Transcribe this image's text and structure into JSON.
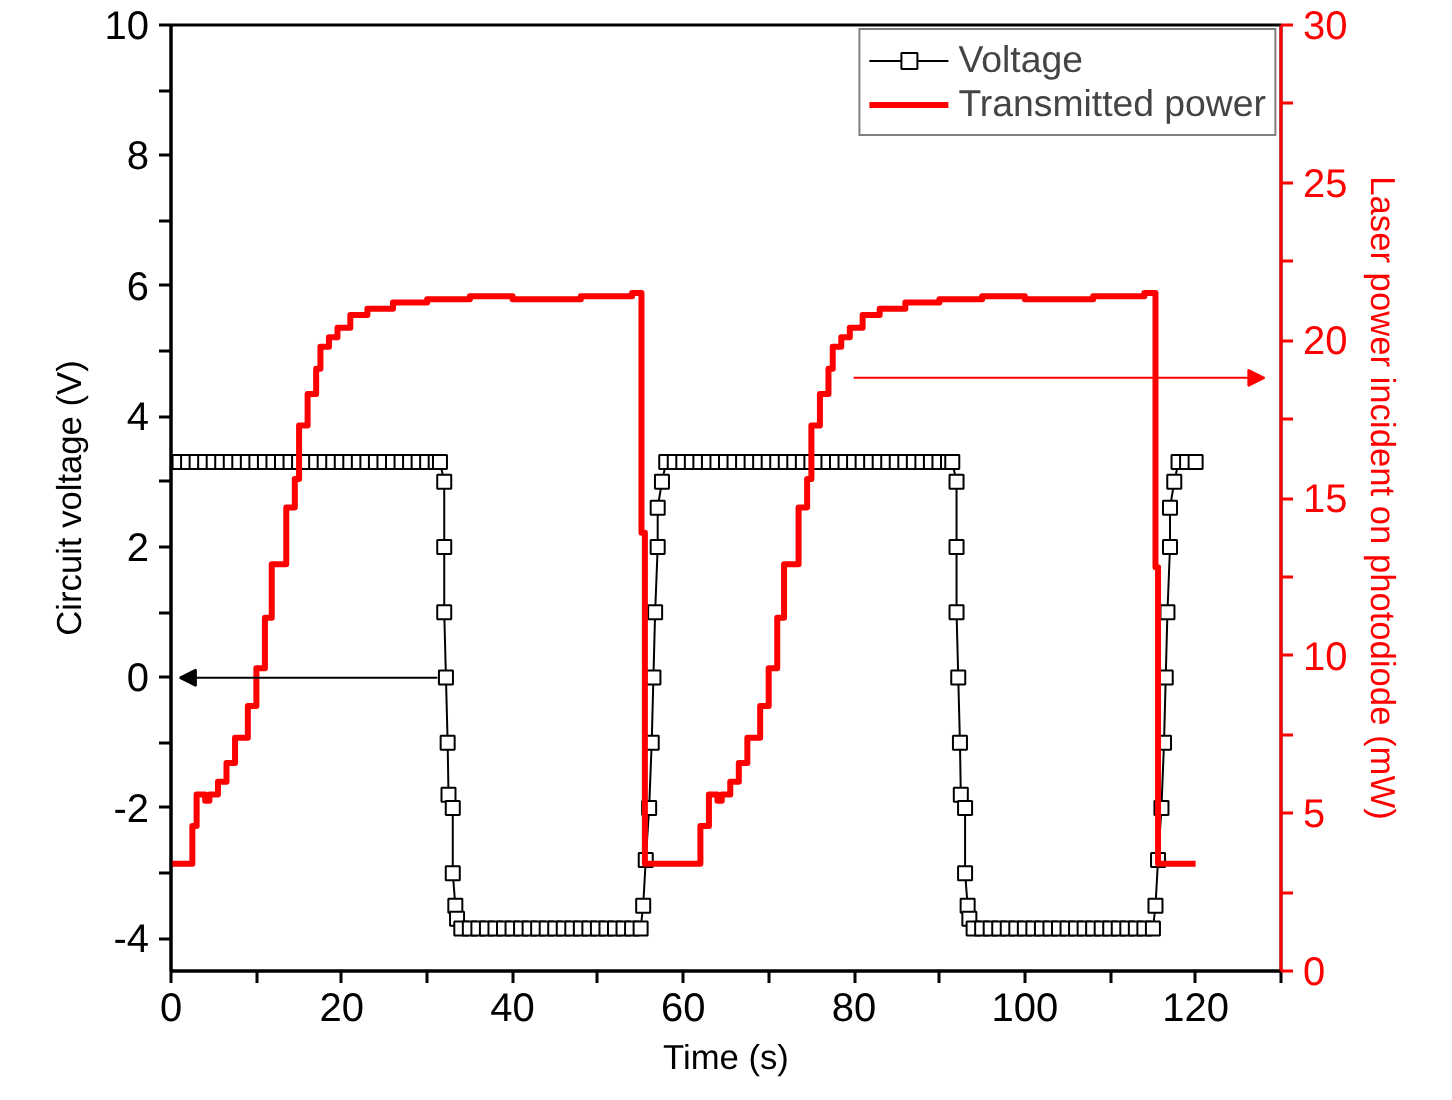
{
  "chart_data": {
    "type": "line",
    "xlabel": "Time (s)",
    "ylabel": "Circuit voltage (V)",
    "y2label": "Laser power incident on photodiode (mW)",
    "xlim": [
      0,
      130
    ],
    "xticks": [
      0,
      {
        "value": 10,
        "label": null
      },
      20,
      {
        "value": 30,
        "label": null
      },
      40,
      {
        "value": 50,
        "label": null
      },
      60,
      {
        "value": 70,
        "label": null
      },
      80,
      {
        "value": 90,
        "label": null
      },
      100,
      {
        "value": 110,
        "label": null
      },
      120,
      {
        "value": 130,
        "label": null
      }
    ],
    "ylim": [
      -4.5,
      10
    ],
    "yticks": [
      -4,
      {
        "value": -3,
        "label": null
      },
      -2,
      {
        "value": -1,
        "label": null
      },
      0,
      {
        "value": 1,
        "label": null
      },
      2,
      {
        "value": 3,
        "label": null
      },
      4,
      {
        "value": 5,
        "label": null
      },
      6,
      {
        "value": 7,
        "label": null
      },
      8,
      {
        "value": 9,
        "label": null
      },
      10
    ],
    "y2lim": [
      0,
      30
    ],
    "y2ticks": [
      0,
      {
        "value": 2.5,
        "label": null
      },
      5,
      {
        "value": 7.5,
        "label": null
      },
      10,
      {
        "value": 12.5,
        "label": null
      },
      15,
      {
        "value": 17.5,
        "label": null
      },
      20,
      {
        "value": 22.5,
        "label": null
      },
      25,
      {
        "value": 27.5,
        "label": null
      },
      30
    ],
    "grid": false,
    "legend": "top right",
    "series": [
      {
        "name": "Voltage",
        "marker": "square",
        "color": "#000000",
        "x": [
          0,
          1,
          2,
          3,
          4,
          5,
          6,
          7,
          8,
          9,
          10,
          11,
          12,
          13,
          14,
          15,
          16,
          17,
          18,
          19,
          20,
          21,
          22,
          23,
          24,
          25,
          26,
          27,
          28,
          29,
          30,
          31,
          31.5,
          32,
          32,
          32,
          32.2,
          32.4,
          32.5,
          33,
          33,
          33.3,
          33.5,
          34,
          35,
          36,
          37,
          38,
          39,
          40,
          41,
          42,
          43,
          44,
          45,
          46,
          47,
          48,
          49,
          50,
          51,
          52,
          53,
          54,
          55,
          55.3,
          55.6,
          56,
          56.3,
          56.5,
          56.7,
          57,
          57,
          57.5,
          58,
          59,
          60,
          61,
          62,
          63,
          64,
          65,
          66,
          67,
          68,
          69,
          70,
          71,
          72,
          73,
          74,
          75,
          76,
          77,
          78,
          79,
          80,
          81,
          82,
          83,
          84,
          85,
          86,
          87,
          88,
          89,
          90,
          91,
          91.5,
          92,
          92,
          92,
          92.2,
          92.4,
          92.5,
          93,
          93,
          93.3,
          93.5,
          94,
          95,
          96,
          97,
          98,
          99,
          100,
          101,
          102,
          103,
          104,
          105,
          106,
          107,
          108,
          109,
          110,
          111,
          112,
          113,
          114,
          115,
          115.3,
          115.6,
          116,
          116.3,
          116.5,
          116.7,
          117,
          117,
          117.5,
          118,
          119,
          120
        ],
        "values": [
          3.3,
          3.3,
          3.3,
          3.3,
          3.3,
          3.3,
          3.3,
          3.3,
          3.3,
          3.3,
          3.3,
          3.3,
          3.3,
          3.3,
          3.3,
          3.3,
          3.3,
          3.3,
          3.3,
          3.3,
          3.3,
          3.3,
          3.3,
          3.3,
          3.3,
          3.3,
          3.3,
          3.3,
          3.3,
          3.3,
          3.3,
          3.3,
          3.3,
          3.0,
          2.0,
          1.0,
          0,
          -1.0,
          -1.8,
          -2.0,
          -3.0,
          -3.5,
          -3.7,
          -3.85,
          -3.85,
          -3.85,
          -3.85,
          -3.85,
          -3.85,
          -3.85,
          -3.85,
          -3.85,
          -3.85,
          -3.85,
          -3.85,
          -3.85,
          -3.85,
          -3.85,
          -3.85,
          -3.85,
          -3.85,
          -3.85,
          -3.85,
          -3.85,
          -3.85,
          -3.5,
          -2.8,
          -2.0,
          -1.0,
          0,
          1.0,
          2.0,
          2.6,
          3.0,
          3.3,
          3.3,
          3.3,
          3.3,
          3.3,
          3.3,
          3.3,
          3.3,
          3.3,
          3.3,
          3.3,
          3.3,
          3.3,
          3.3,
          3.3,
          3.3,
          3.3,
          3.3,
          3.3,
          3.3,
          3.3,
          3.3,
          3.3,
          3.3,
          3.3,
          3.3,
          3.3,
          3.3,
          3.3,
          3.3,
          3.3,
          3.3,
          3.3,
          3.3,
          3.3,
          3.0,
          2.0,
          1.0,
          0,
          -1.0,
          -1.8,
          -2.0,
          -3.0,
          -3.5,
          -3.7,
          -3.85,
          -3.85,
          -3.85,
          -3.85,
          -3.85,
          -3.85,
          -3.85,
          -3.85,
          -3.85,
          -3.85,
          -3.85,
          -3.85,
          -3.85,
          -3.85,
          -3.85,
          -3.85,
          -3.85,
          -3.85,
          -3.85,
          -3.85,
          -3.85,
          -3.85,
          -3.5,
          -2.8,
          -2.0,
          -1.0,
          0,
          1.0,
          2.0,
          2.6,
          3.0,
          3.3,
          3.3,
          3.3
        ]
      },
      {
        "name": "Transmitted power",
        "type": "step",
        "axis": "y2",
        "marker": "none",
        "color": "#ff0000",
        "x": [
          0,
          2.5,
          3,
          4,
          4.5,
          5.5,
          6.5,
          7.5,
          9,
          10,
          11,
          11.8,
          13.5,
          14.5,
          15,
          16,
          17,
          17.5,
          18.5,
          19.5,
          21,
          23,
          26,
          30,
          35,
          40,
          48,
          54,
          55.1,
          55.5,
          62,
          63,
          64,
          64.5,
          65.5,
          66.5,
          67.5,
          69,
          70,
          71,
          71.8,
          73.5,
          74.5,
          75,
          76,
          77,
          77.5,
          78.5,
          79.5,
          81,
          83,
          86,
          90,
          95,
          100,
          108,
          114,
          115.3,
          115.6,
          120
        ],
        "values": [
          3.4,
          4.6,
          5.6,
          5.4,
          5.6,
          6.0,
          6.6,
          7.4,
          8.4,
          9.6,
          11.2,
          12.9,
          14.7,
          15.6,
          17.3,
          18.3,
          19.1,
          19.8,
          20.1,
          20.4,
          20.8,
          21.0,
          21.2,
          21.3,
          21.4,
          21.3,
          21.4,
          21.5,
          13.9,
          3.4,
          4.6,
          5.6,
          5.4,
          5.6,
          6.0,
          6.6,
          7.4,
          8.4,
          9.6,
          11.2,
          12.9,
          14.7,
          15.6,
          17.3,
          18.3,
          19.1,
          19.8,
          20.1,
          20.4,
          20.8,
          21.0,
          21.2,
          21.3,
          21.4,
          21.3,
          21.4,
          21.5,
          12.8,
          3.4,
          3.4
        ]
      }
    ]
  }
}
